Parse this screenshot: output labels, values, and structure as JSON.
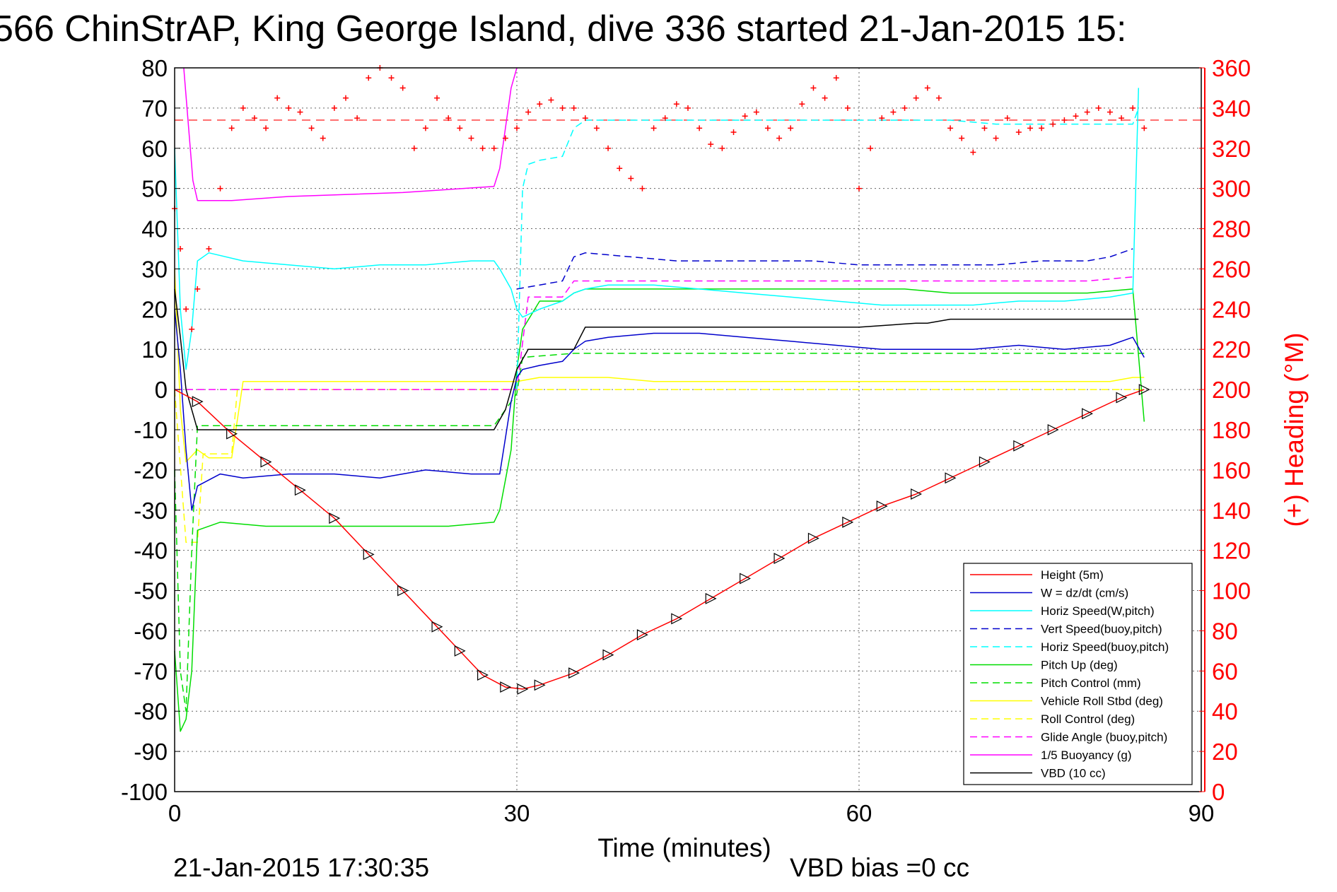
{
  "title": "566 ChinStrAP, King George Island, dive 336 started 21-Jan-2015 15:",
  "footer_left": "21-Jan-2015 17:30:35",
  "footer_right": "VBD bias =0 cc",
  "colors": {
    "height": "#ff0000",
    "w": "#0000cc",
    "horiz_speed": "#00ffff",
    "pitch": "#00dd00",
    "roll": "#ffff00",
    "glide": "#ff00ff",
    "buoyancy": "#ff00ff",
    "vbd": "#000000",
    "heading": "#ff0000"
  },
  "chart_data": {
    "type": "line",
    "title": "566 ChinStrAP, King George Island, dive 336 started 21-Jan-2015 15:",
    "xlabel": "Time (minutes)",
    "ylabel": "",
    "y2label": "(+) Heading (°M)",
    "xlim": [
      0,
      90
    ],
    "ylim": [
      -100,
      80
    ],
    "y2lim": [
      0,
      360
    ],
    "xticks": [
      "0",
      "30",
      "60",
      "90"
    ],
    "yticks": [
      "80",
      "70",
      "60",
      "50",
      "40",
      "30",
      "20",
      "10",
      "0",
      "-10",
      "-20",
      "-30",
      "-40",
      "-50",
      "-60",
      "-70",
      "-80",
      "-90",
      "-100"
    ],
    "y2ticks": [
      "360",
      "340",
      "320",
      "300",
      "280",
      "260",
      "240",
      "220",
      "200",
      "180",
      "160",
      "140",
      "120",
      "100",
      "80",
      "60",
      "40",
      "20",
      "0"
    ],
    "grid": true,
    "legend_position": "bottom-right",
    "series": [
      {
        "name": "Height (5m)",
        "style": "solid",
        "color": "#ff0000",
        "x": [
          0,
          2,
          5,
          8,
          11,
          14,
          17,
          20,
          23,
          25,
          27,
          29,
          30.5,
          32,
          35,
          38,
          41,
          44,
          47,
          50,
          53,
          56,
          59,
          62,
          65,
          68,
          71,
          74,
          77,
          80,
          83,
          85
        ],
        "y": [
          0,
          -3,
          -11,
          -18,
          -25,
          -32,
          -41,
          -50,
          -59,
          -65,
          -71,
          -74,
          -74.5,
          -73.5,
          -70.5,
          -66,
          -61,
          -57,
          -52,
          -47,
          -42,
          -37,
          -33,
          -29,
          -26,
          -22,
          -18,
          -14,
          -10,
          -6,
          -2,
          0
        ]
      },
      {
        "name": "W = dz/dt (cm/s)",
        "style": "solid",
        "color": "#0000cc",
        "x": [
          0,
          0.5,
          1,
          1.5,
          2,
          4,
          6,
          10,
          14,
          18,
          22,
          26,
          28.5,
          29,
          29.5,
          30,
          30.5,
          32,
          34,
          35,
          36,
          38,
          42,
          46,
          50,
          54,
          58,
          62,
          66,
          70,
          74,
          78,
          82,
          84,
          85
        ],
        "y": [
          20,
          5,
          -15,
          -30,
          -24,
          -21,
          -22,
          -21,
          -21,
          -22,
          -20,
          -21,
          -21,
          -12,
          -3,
          3,
          5,
          6,
          7,
          10,
          12,
          13,
          14,
          14,
          13,
          12,
          11,
          10,
          10,
          10,
          11,
          10,
          11,
          13,
          8
        ]
      },
      {
        "name": "Horiz Speed(W,pitch)",
        "style": "solid",
        "color": "#00ffff",
        "x": [
          0,
          0.5,
          1,
          1.5,
          2,
          3,
          6,
          10,
          14,
          18,
          22,
          26,
          28,
          28.5,
          29.5,
          30,
          30.5,
          32,
          34,
          35,
          36,
          38,
          42,
          46,
          50,
          54,
          58,
          62,
          66,
          70,
          74,
          78,
          82,
          84,
          84.5
        ],
        "y": [
          60,
          20,
          5,
          15,
          32,
          34,
          32,
          31,
          30,
          31,
          31,
          32,
          32,
          30,
          25,
          20,
          18,
          20,
          22,
          24,
          25,
          26,
          26,
          25,
          24,
          23,
          22,
          21,
          21,
          21,
          22,
          22,
          23,
          24,
          75
        ]
      },
      {
        "name": "Vert Speed(buoy,pitch)",
        "style": "dashed",
        "color": "#0000cc",
        "x": [
          30,
          32,
          34,
          35,
          36,
          40,
          44,
          48,
          52,
          56,
          60,
          64,
          68,
          72,
          76,
          80,
          82,
          84
        ],
        "y": [
          25,
          26,
          27,
          33,
          34,
          33,
          32,
          32,
          32,
          32,
          31,
          31,
          31,
          31,
          32,
          32,
          33,
          35
        ]
      },
      {
        "name": "Horiz Speed(buoy,pitch)",
        "style": "dashed",
        "color": "#00ffff",
        "x": [
          30,
          30.5,
          31,
          32,
          34,
          35,
          36,
          40,
          44,
          48,
          52,
          56,
          60,
          64,
          68,
          72,
          76,
          80,
          84,
          84.5
        ],
        "y": [
          0,
          50,
          56,
          57,
          58,
          65,
          67,
          67,
          67,
          67,
          67,
          67,
          67,
          67,
          67,
          66,
          66,
          66,
          66,
          70
        ]
      },
      {
        "name": "Pitch Up (deg)",
        "style": "solid",
        "color": "#00dd00",
        "x": [
          0,
          0.5,
          1,
          1.5,
          2,
          4,
          8,
          12,
          16,
          20,
          24,
          28,
          28.5,
          29.5,
          30,
          30.5,
          32,
          34,
          35,
          36,
          40,
          44,
          48,
          52,
          56,
          60,
          64,
          68,
          72,
          76,
          80,
          84,
          85
        ],
        "y": [
          -65,
          -85,
          -82,
          -70,
          -35,
          -33,
          -34,
          -34,
          -34,
          -34,
          -34,
          -33,
          -30,
          -15,
          5,
          15,
          22,
          22,
          24,
          25,
          25,
          25,
          25,
          25,
          25,
          25,
          25,
          24,
          24,
          24,
          24,
          25,
          -8
        ]
      },
      {
        "name": "Pitch Control (mm)",
        "style": "dashed",
        "color": "#00dd00",
        "x": [
          0,
          0.5,
          1,
          1.5,
          2,
          10,
          20,
          28,
          29,
          30,
          30.5,
          35,
          40,
          50,
          60,
          70,
          80,
          84,
          85
        ],
        "y": [
          -20,
          -70,
          -80,
          -40,
          -9,
          -9,
          -9,
          -9,
          -5,
          -1,
          8,
          9,
          9,
          9,
          9,
          9,
          9,
          9,
          9
        ]
      },
      {
        "name": "Vehicle Roll Stbd (deg)",
        "style": "solid",
        "color": "#ffff00",
        "x": [
          0,
          0.5,
          1,
          2,
          3,
          5,
          6,
          10,
          15,
          20,
          25,
          28,
          30,
          32,
          35,
          38,
          42,
          46,
          50,
          54,
          58,
          62,
          66,
          70,
          74,
          78,
          82,
          84,
          85
        ],
        "y": [
          30,
          -5,
          -18,
          -15,
          -17,
          -17,
          2,
          2,
          2,
          2,
          2,
          2,
          2,
          3,
          3,
          3,
          2,
          2,
          2,
          2,
          2,
          2,
          2,
          2,
          2,
          2,
          2,
          3,
          3
        ]
      },
      {
        "name": "Roll Control (deg)",
        "style": "dashed",
        "color": "#ffff00",
        "x": [
          0,
          1,
          2,
          2.5,
          5,
          5.5,
          10,
          15,
          20,
          25,
          28,
          30,
          35,
          40,
          45,
          50,
          55,
          60,
          65,
          70,
          75,
          80,
          84,
          85
        ],
        "y": [
          0,
          -38,
          -38,
          -16,
          -16,
          0,
          0,
          0,
          0,
          0,
          0,
          0,
          0,
          0,
          0,
          0,
          0,
          0,
          0,
          0,
          0,
          0,
          0,
          0
        ]
      },
      {
        "name": "Glide Angle (buoy,pitch)",
        "style": "dashed",
        "color": "#ff00ff",
        "x": [
          0,
          30,
          31,
          34,
          35,
          40,
          50,
          60,
          70,
          80,
          84
        ],
        "y": [
          0,
          0,
          23,
          23,
          27,
          27,
          27,
          27,
          27,
          27,
          28
        ]
      },
      {
        "name": "1/5 Buoyancy (g)",
        "style": "solid",
        "color": "#ff00ff",
        "x": [
          0.8,
          1.6,
          2,
          5,
          10,
          20,
          28,
          28.5,
          29.5,
          30
        ],
        "y": [
          80,
          52,
          47,
          47,
          48,
          49,
          50.5,
          55,
          75,
          80
        ]
      },
      {
        "name": "VBD (10 cc)",
        "style": "solid",
        "color": "#000000",
        "x": [
          0,
          0.5,
          1,
          2,
          28,
          29,
          30,
          31,
          35,
          36,
          40,
          50,
          60,
          65,
          66,
          68,
          70,
          84.5
        ],
        "y": [
          25,
          13,
          0,
          -10,
          -10,
          -5,
          5,
          10,
          10,
          15.5,
          15.5,
          15.5,
          15.5,
          16.5,
          16.5,
          17.5,
          17.5,
          17.5
        ]
      }
    ],
    "heading": {
      "name": "(+) Heading (°M)",
      "reference_value": 334,
      "x": [
        0,
        0.5,
        1,
        1.5,
        2,
        3,
        4,
        5,
        6,
        7,
        8,
        9,
        10,
        11,
        12,
        13,
        14,
        15,
        16,
        17,
        18,
        19,
        20,
        21,
        22,
        23,
        24,
        25,
        26,
        27,
        28,
        29,
        30,
        31,
        32,
        33,
        34,
        35,
        36,
        37,
        38,
        39,
        40,
        41,
        42,
        43,
        44,
        45,
        46,
        47,
        48,
        49,
        50,
        51,
        52,
        53,
        54,
        55,
        56,
        57,
        58,
        59,
        60,
        61,
        62,
        63,
        64,
        65,
        66,
        67,
        68,
        69,
        70,
        71,
        72,
        73,
        74,
        75,
        76,
        77,
        78,
        79,
        80,
        81,
        82,
        83,
        84,
        85
      ],
      "y": [
        290,
        270,
        240,
        230,
        250,
        270,
        300,
        330,
        340,
        335,
        330,
        345,
        340,
        338,
        330,
        325,
        340,
        345,
        335,
        355,
        360,
        355,
        350,
        320,
        330,
        345,
        335,
        330,
        325,
        320,
        320,
        325,
        330,
        338,
        342,
        344,
        340,
        340,
        335,
        330,
        320,
        310,
        305,
        300,
        330,
        335,
        342,
        340,
        330,
        322,
        320,
        328,
        336,
        338,
        330,
        325,
        330,
        342,
        350,
        345,
        355,
        340,
        300,
        320,
        335,
        338,
        340,
        345,
        350,
        345,
        330,
        325,
        318,
        330,
        325,
        335,
        328,
        330,
        330,
        332,
        334,
        336,
        338,
        340,
        338,
        335,
        340,
        330
      ]
    }
  },
  "legend": [
    {
      "label": "Height (5m)",
      "color": "#ff0000",
      "dash": "none"
    },
    {
      "label": "W = dz/dt (cm/s)",
      "color": "#0000cc",
      "dash": "none"
    },
    {
      "label": "Horiz Speed(W,pitch)",
      "color": "#00ffff",
      "dash": "none"
    },
    {
      "label": "Vert Speed(buoy,pitch)",
      "color": "#0000cc",
      "dash": "10 6"
    },
    {
      "label": "Horiz Speed(buoy,pitch)",
      "color": "#00ffff",
      "dash": "10 6"
    },
    {
      "label": "Pitch Up (deg)",
      "color": "#00dd00",
      "dash": "none"
    },
    {
      "label": "Pitch Control (mm)",
      "color": "#00dd00",
      "dash": "10 6"
    },
    {
      "label": "Vehicle Roll Stbd (deg)",
      "color": "#ffff00",
      "dash": "none"
    },
    {
      "label": "Roll Control (deg)",
      "color": "#ffff00",
      "dash": "10 6"
    },
    {
      "label": "Glide Angle (buoy,pitch)",
      "color": "#ff00ff",
      "dash": "10 6"
    },
    {
      "label": "1/5 Buoyancy (g)",
      "color": "#ff00ff",
      "dash": "none"
    },
    {
      "label": "VBD (10 cc)",
      "color": "#000000",
      "dash": "none"
    }
  ]
}
